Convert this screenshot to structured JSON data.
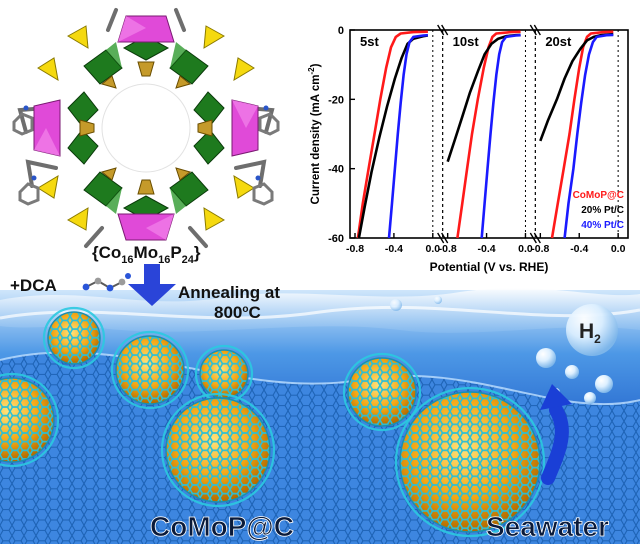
{
  "cluster_formula": {
    "open": "{Co",
    "co_sub": "16",
    "mo": "Mo",
    "mo_sub": "16",
    "p": "P",
    "p_sub": "24",
    "close": "}"
  },
  "synthesis": {
    "additive": "+DCA",
    "annealing_line1": "Annealing at",
    "annealing_temp": "800",
    "annealing_unit_o": "o",
    "annealing_unit_c": "C"
  },
  "product_label": "CoMoP@C",
  "medium_label": "Seawater",
  "gas": {
    "element": "H",
    "subscript": "2"
  },
  "colors": {
    "comop": "#ff1a1a",
    "pt20": "#000000",
    "pt40": "#1a1aff",
    "water": "#1f6fd6",
    "shell": "#3fd4e8",
    "core": "#f2a615"
  },
  "chart_data": {
    "type": "line",
    "ylabel": "Current density (mA cm",
    "ylabel_sup": "-2",
    "ylabel_close": ")",
    "xlabel": "Potential (V vs. RHE)",
    "ylim": [
      -60,
      0
    ],
    "yticks": [
      "0",
      "-20",
      "-40",
      "-60"
    ],
    "xlim": [
      -0.8,
      0.05
    ],
    "xticks": [
      "-0.8",
      "-0.4",
      "0.0"
    ],
    "panels": [
      {
        "label": "5st",
        "series": [
          {
            "name": "CoMoP@C",
            "color": "#ff1a1a",
            "points": [
              [
                -0.77,
                -60
              ],
              [
                -0.72,
                -50
              ],
              [
                -0.66,
                -40
              ],
              [
                -0.6,
                -30
              ],
              [
                -0.54,
                -20
              ],
              [
                -0.48,
                -11
              ],
              [
                -0.43,
                -5
              ],
              [
                -0.38,
                -2
              ],
              [
                -0.33,
                -1
              ],
              [
                -0.2,
                -0.6
              ],
              [
                -0.05,
                -0.5
              ]
            ]
          },
          {
            "name": "20% Pt/C",
            "color": "#000000",
            "points": [
              [
                -0.76,
                -60
              ],
              [
                -0.7,
                -51
              ],
              [
                -0.63,
                -41
              ],
              [
                -0.55,
                -31
              ],
              [
                -0.47,
                -22
              ],
              [
                -0.39,
                -14
              ],
              [
                -0.32,
                -8
              ],
              [
                -0.26,
                -4
              ],
              [
                -0.2,
                -2.5
              ],
              [
                -0.1,
                -1.8
              ],
              [
                -0.05,
                -1.6
              ]
            ]
          },
          {
            "name": "40% Pt/C",
            "color": "#1a1aff",
            "points": [
              [
                -0.45,
                -60
              ],
              [
                -0.42,
                -50
              ],
              [
                -0.39,
                -40
              ],
              [
                -0.36,
                -30
              ],
              [
                -0.33,
                -21
              ],
              [
                -0.3,
                -13
              ],
              [
                -0.27,
                -7
              ],
              [
                -0.24,
                -3.5
              ],
              [
                -0.2,
                -2
              ],
              [
                -0.1,
                -1.6
              ],
              [
                -0.05,
                -1.5
              ]
            ]
          }
        ]
      },
      {
        "label": "10st",
        "series": [
          {
            "name": "CoMoP@C",
            "color": "#ff1a1a",
            "points": [
              [
                -0.7,
                -60
              ],
              [
                -0.65,
                -50
              ],
              [
                -0.6,
                -40
              ],
              [
                -0.55,
                -30
              ],
              [
                -0.49,
                -20
              ],
              [
                -0.43,
                -11
              ],
              [
                -0.38,
                -5
              ],
              [
                -0.34,
                -2
              ],
              [
                -0.3,
                -1
              ],
              [
                -0.15,
                -0.6
              ],
              [
                -0.05,
                -0.5
              ]
            ]
          },
          {
            "name": "20% Pt/C",
            "color": "#000000",
            "points": [
              [
                -0.8,
                -38
              ],
              [
                -0.73,
                -32
              ],
              [
                -0.65,
                -25
              ],
              [
                -0.57,
                -18
              ],
              [
                -0.49,
                -12
              ],
              [
                -0.42,
                -7
              ],
              [
                -0.35,
                -4
              ],
              [
                -0.28,
                -2.5
              ],
              [
                -0.2,
                -1.8
              ],
              [
                -0.1,
                -1.5
              ],
              [
                -0.05,
                -1.4
              ]
            ]
          },
          {
            "name": "40% Pt/C",
            "color": "#1a1aff",
            "points": [
              [
                -0.45,
                -60
              ],
              [
                -0.42,
                -50
              ],
              [
                -0.39,
                -40
              ],
              [
                -0.36,
                -30
              ],
              [
                -0.33,
                -21
              ],
              [
                -0.3,
                -13
              ],
              [
                -0.27,
                -7
              ],
              [
                -0.24,
                -3.5
              ],
              [
                -0.2,
                -2
              ],
              [
                -0.1,
                -1.6
              ],
              [
                -0.05,
                -1.5
              ]
            ]
          }
        ]
      },
      {
        "label": "20st",
        "series": [
          {
            "name": "CoMoP@C",
            "color": "#ff1a1a",
            "points": [
              [
                -0.68,
                -60
              ],
              [
                -0.62,
                -50
              ],
              [
                -0.56,
                -40
              ],
              [
                -0.5,
                -30
              ],
              [
                -0.45,
                -20
              ],
              [
                -0.4,
                -11
              ],
              [
                -0.36,
                -5
              ],
              [
                -0.32,
                -2
              ],
              [
                -0.28,
                -1
              ],
              [
                -0.15,
                -0.6
              ],
              [
                -0.05,
                -0.5
              ]
            ]
          },
          {
            "name": "20% Pt/C",
            "color": "#000000",
            "points": [
              [
                -0.8,
                -32
              ],
              [
                -0.72,
                -26
              ],
              [
                -0.63,
                -20
              ],
              [
                -0.55,
                -14
              ],
              [
                -0.47,
                -9
              ],
              [
                -0.39,
                -5.5
              ],
              [
                -0.32,
                -3
              ],
              [
                -0.25,
                -2
              ],
              [
                -0.18,
                -1.5
              ],
              [
                -0.1,
                -1.3
              ],
              [
                -0.05,
                -1.2
              ]
            ]
          },
          {
            "name": "40% Pt/C",
            "color": "#1a1aff",
            "points": [
              [
                -0.55,
                -60
              ],
              [
                -0.51,
                -50
              ],
              [
                -0.46,
                -40
              ],
              [
                -0.42,
                -30
              ],
              [
                -0.38,
                -21
              ],
              [
                -0.34,
                -13
              ],
              [
                -0.3,
                -7
              ],
              [
                -0.26,
                -3.5
              ],
              [
                -0.22,
                -2
              ],
              [
                -0.12,
                -1.5
              ],
              [
                -0.05,
                -1.4
              ]
            ]
          }
        ]
      }
    ],
    "legend": {
      "position": "bottom-right",
      "entries": [
        "CoMoP@C",
        "20% Pt/C",
        "40% Pt/C"
      ]
    }
  }
}
